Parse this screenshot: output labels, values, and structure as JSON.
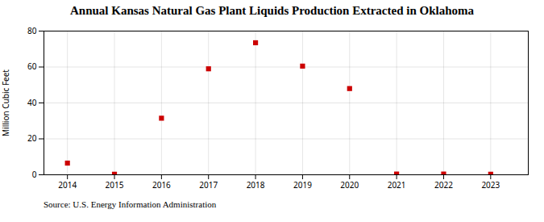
{
  "chart_data": {
    "type": "scatter",
    "title": "Annual Kansas Natural Gas Plant Liquids Production Extracted in Oklahoma",
    "ylabel": "Million Cubic Feet",
    "source": "Source: U.S. Energy Information Administration",
    "x": [
      2014,
      2015,
      2016,
      2017,
      2018,
      2019,
      2020,
      2021,
      2022,
      2023
    ],
    "values": [
      6.5,
      0.3,
      31.5,
      59.0,
      73.5,
      60.5,
      48.0,
      0.4,
      0.4,
      0.3
    ],
    "color": "#cc0000",
    "marker": "square",
    "xlim": [
      2013.5,
      2023.8
    ],
    "ylim": [
      0,
      80
    ],
    "xticks": [
      2014,
      2015,
      2016,
      2017,
      2018,
      2019,
      2020,
      2021,
      2022,
      2023
    ],
    "yticks": [
      0,
      20,
      40,
      60,
      80
    ],
    "grid": true
  }
}
